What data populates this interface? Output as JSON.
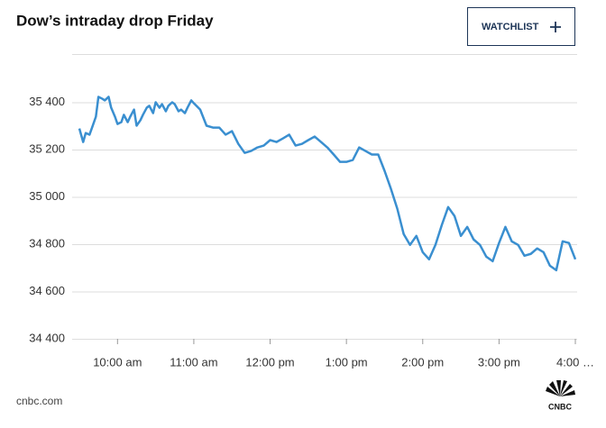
{
  "chart_data": {
    "type": "line",
    "title": "Dow’s intraday drop Friday",
    "button": "WATCHLIST",
    "source": "cnbc.com",
    "logo": "CNBC",
    "x": [
      570,
      573,
      575,
      578,
      580,
      583,
      585,
      588,
      590,
      593,
      595,
      598,
      600,
      603,
      605,
      608,
      610,
      613,
      615,
      618,
      620,
      623,
      625,
      628,
      630,
      633,
      635,
      638,
      640,
      643,
      645,
      648,
      650,
      653,
      655,
      658,
      660,
      665,
      670,
      675,
      680,
      685,
      690,
      695,
      700,
      705,
      710,
      715,
      720,
      725,
      730,
      735,
      740,
      745,
      750,
      755,
      760,
      765,
      770,
      775,
      780,
      785,
      790,
      795,
      800,
      805,
      810,
      815,
      820,
      825,
      830,
      835,
      840,
      845,
      850,
      855,
      860,
      865,
      870,
      875,
      880,
      885,
      890,
      895,
      900,
      905,
      910,
      915,
      920,
      925,
      930,
      935,
      940,
      945,
      950,
      955,
      960
    ],
    "series": [
      {
        "name": "Dow",
        "color": "#3a8fd0",
        "values": [
          35289,
          35232,
          35270,
          35263,
          35293,
          35339,
          35423,
          35415,
          35408,
          35423,
          35377,
          35339,
          35308,
          35316,
          35347,
          35316,
          35339,
          35369,
          35301,
          35324,
          35347,
          35377,
          35385,
          35354,
          35400,
          35377,
          35392,
          35362,
          35385,
          35400,
          35392,
          35362,
          35369,
          35354,
          35377,
          35408,
          35396,
          35369,
          35301,
          35293,
          35293,
          35263,
          35278,
          35224,
          35186,
          35194,
          35209,
          35217,
          35240,
          35232,
          35247,
          35263,
          35217,
          35224,
          35240,
          35255,
          35232,
          35209,
          35179,
          35148,
          35148,
          35156,
          35209,
          35194,
          35179,
          35179,
          35110,
          35034,
          34950,
          34843,
          34797,
          34835,
          34766,
          34736,
          34797,
          34881,
          34957,
          34919,
          34835,
          34873,
          34820,
          34797,
          34747,
          34728,
          34805,
          34873,
          34812,
          34797,
          34751,
          34759,
          34782,
          34766,
          34709,
          34690,
          34812,
          34805,
          34736
        ]
      }
    ],
    "xlim": [
      570,
      960
    ],
    "xticks": [
      {
        "value": 600,
        "label": "10:00 am"
      },
      {
        "value": 660,
        "label": "11:00 am"
      },
      {
        "value": 720,
        "label": "12:00 pm"
      },
      {
        "value": 780,
        "label": "1:00 pm"
      },
      {
        "value": 840,
        "label": "2:00 pm"
      },
      {
        "value": 900,
        "label": "3:00 pm"
      },
      {
        "value": 960,
        "label": "4:00 …"
      }
    ],
    "ylim": [
      34400,
      35600
    ],
    "yticks": [
      {
        "value": 34400,
        "label": "34 400"
      },
      {
        "value": 34600,
        "label": "34 600"
      },
      {
        "value": 34800,
        "label": "34 800"
      },
      {
        "value": 35000,
        "label": "35 000"
      },
      {
        "value": 35200,
        "label": "35 200"
      },
      {
        "value": 35400,
        "label": "35 400"
      }
    ],
    "grid": true
  }
}
